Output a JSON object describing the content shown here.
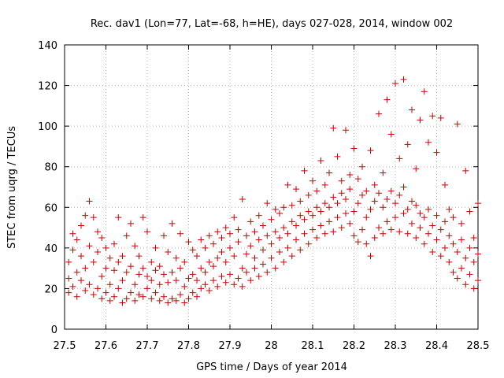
{
  "chart_data": {
    "type": "scatter",
    "title": "Rec. dav1 (Lon=77, Lat=-68, h=HE), days 027-028, 2014, window 002",
    "xlabel": "GPS time / Days of year 2014",
    "ylabel": "STEC from uqrg / TECUs",
    "xlim": [
      27.5,
      28.5
    ],
    "ylim": [
      0,
      140
    ],
    "xticks": [
      "27.5",
      "27.6",
      "27.7",
      "27.8",
      "27.9",
      "28",
      "28.1",
      "28.2",
      "28.3",
      "28.4",
      "28.5"
    ],
    "yticks": [
      "0",
      "20",
      "40",
      "60",
      "80",
      "100",
      "120",
      "140"
    ],
    "grid": true,
    "marker": "+",
    "series_color": "#cc0000",
    "series": [
      {
        "name": "STEC",
        "points": [
          [
            27.51,
            18
          ],
          [
            27.51,
            25
          ],
          [
            27.51,
            33
          ],
          [
            27.52,
            21
          ],
          [
            27.52,
            39
          ],
          [
            27.52,
            47
          ],
          [
            27.53,
            16
          ],
          [
            27.53,
            28
          ],
          [
            27.53,
            44
          ],
          [
            27.54,
            24
          ],
          [
            27.54,
            36
          ],
          [
            27.54,
            51
          ],
          [
            27.55,
            19
          ],
          [
            27.55,
            30
          ],
          [
            27.55,
            56
          ],
          [
            27.56,
            22
          ],
          [
            27.56,
            41
          ],
          [
            27.56,
            63
          ],
          [
            27.57,
            17
          ],
          [
            27.57,
            33
          ],
          [
            27.57,
            55
          ],
          [
            27.58,
            20
          ],
          [
            27.58,
            38
          ],
          [
            27.58,
            48
          ],
          [
            27.59,
            15
          ],
          [
            27.59,
            26
          ],
          [
            27.59,
            45
          ],
          [
            27.6,
            18
          ],
          [
            27.6,
            30
          ],
          [
            27.6,
            40
          ],
          [
            27.61,
            14
          ],
          [
            27.61,
            22
          ],
          [
            27.61,
            35
          ],
          [
            27.62,
            16
          ],
          [
            27.62,
            29
          ],
          [
            27.62,
            42
          ],
          [
            27.63,
            20
          ],
          [
            27.63,
            33
          ],
          [
            27.63,
            55
          ],
          [
            27.64,
            13
          ],
          [
            27.64,
            24
          ],
          [
            27.64,
            36
          ],
          [
            27.65,
            15
          ],
          [
            27.65,
            28
          ],
          [
            27.65,
            46
          ],
          [
            27.66,
            18
          ],
          [
            27.66,
            31
          ],
          [
            27.66,
            52
          ],
          [
            27.67,
            14
          ],
          [
            27.67,
            22
          ],
          [
            27.67,
            41
          ],
          [
            27.68,
            17
          ],
          [
            27.68,
            27
          ],
          [
            27.68,
            36
          ],
          [
            27.69,
            16
          ],
          [
            27.69,
            30
          ],
          [
            27.69,
            55
          ],
          [
            27.7,
            20
          ],
          [
            27.7,
            26
          ],
          [
            27.7,
            48
          ],
          [
            27.71,
            15
          ],
          [
            27.71,
            24
          ],
          [
            27.71,
            33
          ],
          [
            27.72,
            18
          ],
          [
            27.72,
            29
          ],
          [
            27.72,
            40
          ],
          [
            27.73,
            14
          ],
          [
            27.73,
            22
          ],
          [
            27.73,
            31
          ],
          [
            27.74,
            16
          ],
          [
            27.74,
            27
          ],
          [
            27.74,
            46
          ],
          [
            27.75,
            13
          ],
          [
            27.75,
            23
          ],
          [
            27.75,
            38
          ],
          [
            27.76,
            15
          ],
          [
            27.76,
            28
          ],
          [
            27.76,
            52
          ],
          [
            27.77,
            14
          ],
          [
            27.77,
            24
          ],
          [
            27.77,
            35
          ],
          [
            27.78,
            17
          ],
          [
            27.78,
            30
          ],
          [
            27.78,
            47
          ],
          [
            27.79,
            13
          ],
          [
            27.79,
            21
          ],
          [
            27.79,
            33
          ],
          [
            27.8,
            15
          ],
          [
            27.8,
            25
          ],
          [
            27.8,
            43
          ],
          [
            27.81,
            18
          ],
          [
            27.81,
            27
          ],
          [
            27.81,
            39
          ],
          [
            27.82,
            16
          ],
          [
            27.82,
            24
          ],
          [
            27.82,
            36
          ],
          [
            27.83,
            20
          ],
          [
            27.83,
            30
          ],
          [
            27.83,
            44
          ],
          [
            27.84,
            22
          ],
          [
            27.84,
            28
          ],
          [
            27.84,
            40
          ],
          [
            27.85,
            19
          ],
          [
            27.85,
            33
          ],
          [
            27.85,
            46
          ],
          [
            27.86,
            24
          ],
          [
            27.86,
            31
          ],
          [
            27.86,
            42
          ],
          [
            27.87,
            21
          ],
          [
            27.87,
            35
          ],
          [
            27.87,
            48
          ],
          [
            27.88,
            26
          ],
          [
            27.88,
            38
          ],
          [
            27.88,
            45
          ],
          [
            27.89,
            23
          ],
          [
            27.89,
            33
          ],
          [
            27.89,
            50
          ],
          [
            27.9,
            27
          ],
          [
            27.9,
            40
          ],
          [
            27.9,
            47
          ],
          [
            27.91,
            22
          ],
          [
            27.91,
            36
          ],
          [
            27.91,
            55
          ],
          [
            27.92,
            25
          ],
          [
            27.92,
            43
          ],
          [
            27.92,
            49
          ],
          [
            27.93,
            21
          ],
          [
            27.93,
            30
          ],
          [
            27.93,
            64
          ],
          [
            27.94,
            28
          ],
          [
            27.94,
            37
          ],
          [
            27.94,
            46
          ],
          [
            27.95,
            24
          ],
          [
            27.95,
            41
          ],
          [
            27.95,
            53
          ],
          [
            27.96,
            30
          ],
          [
            27.96,
            35
          ],
          [
            27.96,
            48
          ],
          [
            27.97,
            26
          ],
          [
            27.97,
            44
          ],
          [
            27.97,
            56
          ],
          [
            27.98,
            32
          ],
          [
            27.98,
            39
          ],
          [
            27.98,
            51
          ],
          [
            27.99,
            28
          ],
          [
            27.99,
            46
          ],
          [
            27.99,
            62
          ],
          [
            28.0,
            35
          ],
          [
            28.0,
            42
          ],
          [
            28.0,
            54
          ],
          [
            28.01,
            30
          ],
          [
            28.01,
            48
          ],
          [
            28.01,
            59
          ],
          [
            28.02,
            38
          ],
          [
            28.02,
            45
          ],
          [
            28.02,
            57
          ],
          [
            28.03,
            33
          ],
          [
            28.03,
            50
          ],
          [
            28.03,
            60
          ],
          [
            28.04,
            40
          ],
          [
            28.04,
            47
          ],
          [
            28.04,
            71
          ],
          [
            28.05,
            36
          ],
          [
            28.05,
            53
          ],
          [
            28.05,
            61
          ],
          [
            28.06,
            44
          ],
          [
            28.06,
            51
          ],
          [
            28.06,
            69
          ],
          [
            28.07,
            39
          ],
          [
            28.07,
            56
          ],
          [
            28.07,
            63
          ],
          [
            28.08,
            47
          ],
          [
            28.08,
            54
          ],
          [
            28.08,
            78
          ],
          [
            28.09,
            42
          ],
          [
            28.09,
            58
          ],
          [
            28.09,
            66
          ],
          [
            28.1,
            49
          ],
          [
            28.1,
            56
          ],
          [
            28.1,
            73
          ],
          [
            28.11,
            45
          ],
          [
            28.11,
            60
          ],
          [
            28.11,
            68
          ],
          [
            28.12,
            51
          ],
          [
            28.12,
            58
          ],
          [
            28.12,
            83
          ],
          [
            28.13,
            47
          ],
          [
            28.13,
            62
          ],
          [
            28.13,
            71
          ],
          [
            28.14,
            53
          ],
          [
            28.14,
            60
          ],
          [
            28.14,
            77
          ],
          [
            28.15,
            48
          ],
          [
            28.15,
            65
          ],
          [
            28.15,
            99
          ],
          [
            28.16,
            55
          ],
          [
            28.16,
            62
          ],
          [
            28.16,
            85
          ],
          [
            28.17,
            50
          ],
          [
            28.17,
            67
          ],
          [
            28.17,
            73
          ],
          [
            28.18,
            57
          ],
          [
            28.18,
            64
          ],
          [
            28.18,
            98
          ],
          [
            28.19,
            52
          ],
          [
            28.19,
            69
          ],
          [
            28.19,
            76
          ],
          [
            28.2,
            46
          ],
          [
            28.2,
            58
          ],
          [
            28.2,
            89
          ],
          [
            28.21,
            43
          ],
          [
            28.21,
            62
          ],
          [
            28.21,
            74
          ],
          [
            28.22,
            49
          ],
          [
            28.22,
            66
          ],
          [
            28.22,
            80
          ],
          [
            28.23,
            42
          ],
          [
            28.23,
            55
          ],
          [
            28.23,
            68
          ],
          [
            28.24,
            36
          ],
          [
            28.24,
            59
          ],
          [
            28.24,
            88
          ],
          [
            28.25,
            45
          ],
          [
            28.25,
            63
          ],
          [
            28.25,
            71
          ],
          [
            28.26,
            50
          ],
          [
            28.26,
            67
          ],
          [
            28.26,
            106
          ],
          [
            28.27,
            47
          ],
          [
            28.27,
            60
          ],
          [
            28.27,
            77
          ],
          [
            28.28,
            53
          ],
          [
            28.28,
            64
          ],
          [
            28.28,
            113
          ],
          [
            28.29,
            49
          ],
          [
            28.29,
            68
          ],
          [
            28.29,
            96
          ],
          [
            28.3,
            55
          ],
          [
            28.3,
            62
          ],
          [
            28.3,
            121
          ],
          [
            28.31,
            48
          ],
          [
            28.31,
            66
          ],
          [
            28.31,
            84
          ],
          [
            28.32,
            57
          ],
          [
            28.32,
            70
          ],
          [
            28.32,
            123
          ],
          [
            28.33,
            47
          ],
          [
            28.33,
            59
          ],
          [
            28.33,
            91
          ],
          [
            28.34,
            52
          ],
          [
            28.34,
            63
          ],
          [
            28.34,
            108
          ],
          [
            28.35,
            45
          ],
          [
            28.35,
            61
          ],
          [
            28.35,
            79
          ],
          [
            28.36,
            50
          ],
          [
            28.36,
            57
          ],
          [
            28.36,
            103
          ],
          [
            28.37,
            42
          ],
          [
            28.37,
            55
          ],
          [
            28.37,
            117
          ],
          [
            28.38,
            47
          ],
          [
            28.38,
            59
          ],
          [
            28.38,
            92
          ],
          [
            28.39,
            38
          ],
          [
            28.39,
            51
          ],
          [
            28.39,
            105
          ],
          [
            28.4,
            44
          ],
          [
            28.4,
            56
          ],
          [
            28.4,
            87
          ],
          [
            28.41,
            36
          ],
          [
            28.41,
            49
          ],
          [
            28.41,
            104
          ],
          [
            28.42,
            40
          ],
          [
            28.42,
            53
          ],
          [
            28.42,
            71
          ],
          [
            28.43,
            33
          ],
          [
            28.43,
            46
          ],
          [
            28.43,
            59
          ],
          [
            28.44,
            28
          ],
          [
            28.44,
            42
          ],
          [
            28.44,
            55
          ],
          [
            28.45,
            25
          ],
          [
            28.45,
            38
          ],
          [
            28.45,
            101
          ],
          [
            28.46,
            30
          ],
          [
            28.46,
            44
          ],
          [
            28.46,
            52
          ],
          [
            28.47,
            22
          ],
          [
            28.47,
            35
          ],
          [
            28.47,
            78
          ],
          [
            28.48,
            27
          ],
          [
            28.48,
            40
          ],
          [
            28.48,
            58
          ],
          [
            28.49,
            20
          ],
          [
            28.49,
            33
          ],
          [
            28.49,
            45
          ],
          [
            28.5,
            24
          ],
          [
            28.5,
            37
          ],
          [
            28.5,
            62
          ]
        ]
      }
    ]
  }
}
